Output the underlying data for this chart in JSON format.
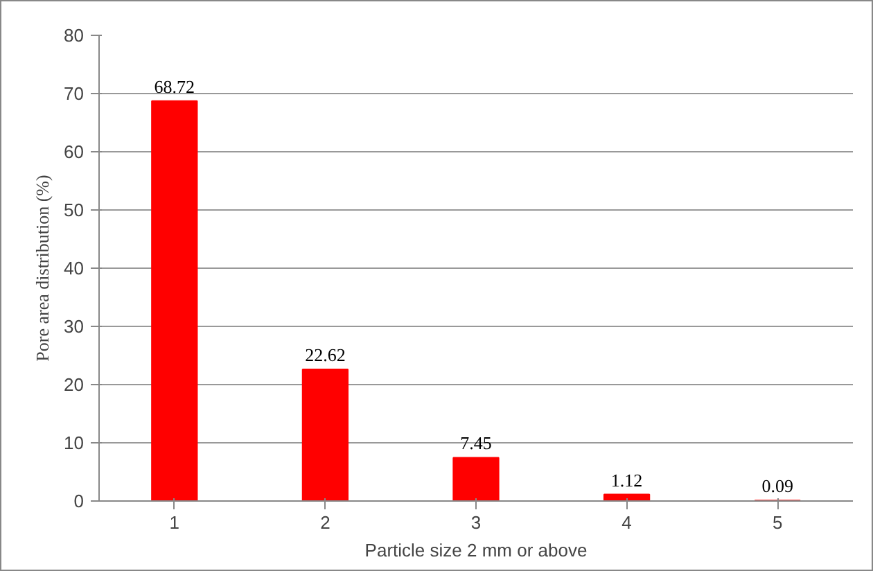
{
  "chart_data": {
    "type": "bar",
    "xlabel": "Particle size 2 mm or above",
    "ylabel": "Pore area distribution (%)",
    "categories": [
      "1",
      "2",
      "3",
      "4",
      "5"
    ],
    "values": [
      68.72,
      22.62,
      7.45,
      1.12,
      0.09
    ],
    "color": "#ff0000",
    "ylim": [
      0,
      80
    ],
    "yticks": [
      0,
      10,
      20,
      30,
      40,
      50,
      60,
      70,
      80
    ],
    "grid": "y",
    "data_labels": true
  }
}
